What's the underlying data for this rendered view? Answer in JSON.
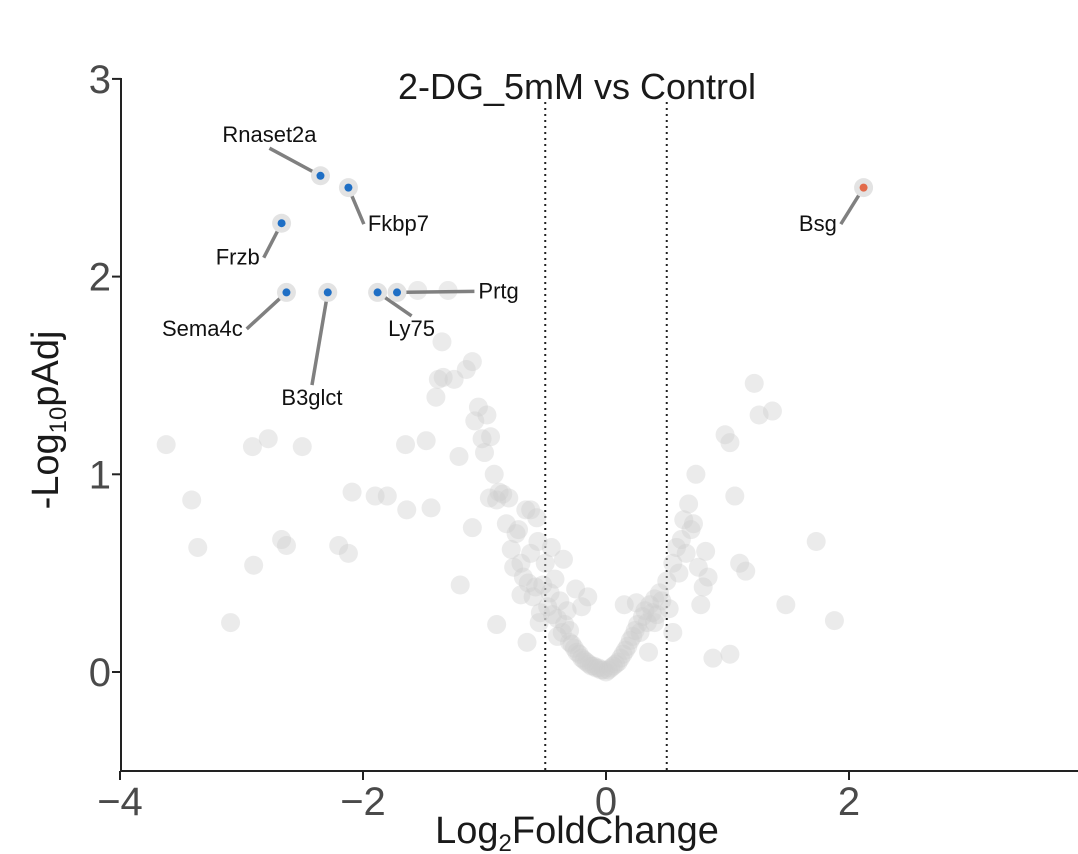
{
  "chart_data": {
    "type": "scatter",
    "title": "2-DG_5mM vs Control",
    "xlabel": {
      "prefix": "Log",
      "sub": "2",
      "suffix": "FoldChange"
    },
    "ylabel": {
      "prefix": "-Log",
      "sub": "10",
      "suffix": "pAdj"
    },
    "xlim": [
      -4,
      3.9
    ],
    "ylim": [
      -0.5,
      3
    ],
    "x_ticks": [
      -4,
      -2,
      0,
      2
    ],
    "x_tick_labels": [
      "−4",
      "−2",
      "0",
      "2"
    ],
    "y_ticks": [
      0,
      1,
      2,
      3
    ],
    "y_tick_labels": [
      "0",
      "1",
      "2",
      "3"
    ],
    "thresholds_x": [
      -0.5,
      0.5
    ],
    "grid": false,
    "legend": "none",
    "colors": {
      "background": "#cccccc",
      "down": "#1f6fc5",
      "up": "#e26a4a",
      "halo": "#e3e3e3",
      "leader": "#808080",
      "threshold": "#222222"
    },
    "labeled": [
      {
        "gene": "Rnaset2a",
        "x": -2.35,
        "y": 2.51,
        "dir": "down",
        "lx": -2.77,
        "ly": 2.68,
        "anchor": "middle"
      },
      {
        "gene": "Fkbp7",
        "x": -2.12,
        "y": 2.45,
        "dir": "down",
        "lx": -1.96,
        "ly": 2.23,
        "anchor": "start"
      },
      {
        "gene": "Frzb",
        "x": -2.67,
        "y": 2.27,
        "dir": "down",
        "lx": -2.85,
        "ly": 2.06,
        "anchor": "end"
      },
      {
        "gene": "Sema4c",
        "x": -2.63,
        "y": 1.92,
        "dir": "down",
        "lx": -2.99,
        "ly": 1.7,
        "anchor": "end"
      },
      {
        "gene": "B3glct",
        "x": -2.29,
        "y": 1.92,
        "dir": "down",
        "lx": -2.42,
        "ly": 1.35,
        "anchor": "middle"
      },
      {
        "gene": "Ly75",
        "x": -1.88,
        "y": 1.92,
        "dir": "down",
        "lx": -1.6,
        "ly": 1.7,
        "anchor": "middle"
      },
      {
        "gene": "Prtg",
        "x": -1.72,
        "y": 1.92,
        "dir": "down",
        "lx": -1.05,
        "ly": 1.89,
        "anchor": "start"
      },
      {
        "gene": "Bsg",
        "x": 2.12,
        "y": 2.45,
        "dir": "up",
        "lx": 1.9,
        "ly": 2.23,
        "anchor": "end"
      }
    ],
    "background_points": [
      [
        -3.62,
        1.15
      ],
      [
        -3.41,
        0.87
      ],
      [
        -3.36,
        0.63
      ],
      [
        -3.09,
        0.25
      ],
      [
        -2.91,
        1.14
      ],
      [
        -2.78,
        1.18
      ],
      [
        -2.9,
        0.54
      ],
      [
        -2.67,
        0.67
      ],
      [
        -2.63,
        0.64
      ],
      [
        -2.5,
        1.14
      ],
      [
        -2.2,
        0.64
      ],
      [
        -2.12,
        0.6
      ],
      [
        -2.09,
        0.91
      ],
      [
        -1.8,
        0.89
      ],
      [
        -1.64,
        0.82
      ],
      [
        -1.55,
        1.93
      ],
      [
        -1.48,
        1.17
      ],
      [
        -1.44,
        0.83
      ],
      [
        -1.4,
        1.39
      ],
      [
        -1.38,
        1.48
      ],
      [
        -1.35,
        1.67
      ],
      [
        -1.34,
        1.49
      ],
      [
        -1.3,
        1.93
      ],
      [
        -1.25,
        1.48
      ],
      [
        -1.21,
        1.09
      ],
      [
        -1.15,
        1.53
      ],
      [
        -1.1,
        1.57
      ],
      [
        -1.08,
        1.27
      ],
      [
        -1.05,
        1.34
      ],
      [
        -1.02,
        1.18
      ],
      [
        -1.0,
        1.11
      ],
      [
        -0.98,
        1.3
      ],
      [
        -0.96,
        0.88
      ],
      [
        -0.95,
        1.19
      ],
      [
        -0.92,
        1.0
      ],
      [
        -0.9,
        0.87
      ],
      [
        -0.88,
        0.91
      ],
      [
        -0.85,
        0.9
      ],
      [
        -0.82,
        0.75
      ],
      [
        -0.8,
        0.88
      ],
      [
        -0.78,
        0.62
      ],
      [
        -0.76,
        0.53
      ],
      [
        -0.74,
        0.7
      ],
      [
        -0.72,
        0.72
      ],
      [
        -0.7,
        0.55
      ],
      [
        -0.68,
        0.48
      ],
      [
        -0.66,
        0.82
      ],
      [
        -0.64,
        0.45
      ],
      [
        -0.62,
        0.6
      ],
      [
        -0.6,
        0.38
      ],
      [
        -0.58,
        0.43
      ],
      [
        -0.56,
        0.66
      ],
      [
        -0.54,
        0.3
      ],
      [
        -0.52,
        0.44
      ],
      [
        -0.5,
        0.55
      ],
      [
        -0.48,
        0.33
      ],
      [
        -0.46,
        0.4
      ],
      [
        -0.44,
        0.29
      ],
      [
        -0.42,
        0.47
      ],
      [
        -0.4,
        0.27
      ],
      [
        -0.38,
        0.36
      ],
      [
        -0.36,
        0.2
      ],
      [
        -0.34,
        0.24
      ],
      [
        -0.32,
        0.31
      ],
      [
        -0.3,
        0.15
      ],
      [
        -0.28,
        0.14
      ],
      [
        -0.26,
        0.12
      ],
      [
        -0.24,
        0.1
      ],
      [
        -0.22,
        0.09
      ],
      [
        -0.2,
        0.07
      ],
      [
        -0.18,
        0.06
      ],
      [
        -0.16,
        0.05
      ],
      [
        -0.14,
        0.04
      ],
      [
        -0.12,
        0.03
      ],
      [
        -0.1,
        0.03
      ],
      [
        -0.08,
        0.02
      ],
      [
        -0.06,
        0.02
      ],
      [
        -0.04,
        0.01
      ],
      [
        -0.02,
        0.01
      ],
      [
        0.0,
        0.0
      ],
      [
        0.02,
        0.01
      ],
      [
        0.04,
        0.02
      ],
      [
        0.06,
        0.03
      ],
      [
        0.08,
        0.04
      ],
      [
        0.1,
        0.05
      ],
      [
        0.12,
        0.07
      ],
      [
        0.14,
        0.09
      ],
      [
        0.16,
        0.11
      ],
      [
        0.18,
        0.13
      ],
      [
        0.2,
        0.16
      ],
      [
        0.22,
        0.18
      ],
      [
        0.24,
        0.21
      ],
      [
        0.26,
        0.24
      ],
      [
        0.28,
        0.2
      ],
      [
        0.3,
        0.28
      ],
      [
        0.32,
        0.31
      ],
      [
        0.34,
        0.25
      ],
      [
        0.36,
        0.34
      ],
      [
        0.38,
        0.3
      ],
      [
        0.4,
        0.37
      ],
      [
        0.42,
        0.29
      ],
      [
        0.44,
        0.4
      ],
      [
        0.46,
        0.36
      ],
      [
        0.5,
        0.46
      ],
      [
        0.52,
        0.32
      ],
      [
        0.55,
        0.55
      ],
      [
        0.58,
        0.63
      ],
      [
        0.6,
        0.5
      ],
      [
        0.62,
        0.67
      ],
      [
        0.64,
        0.77
      ],
      [
        0.66,
        0.6
      ],
      [
        0.68,
        0.85
      ],
      [
        0.7,
        0.72
      ],
      [
        0.72,
        0.75
      ],
      [
        0.74,
        1.0
      ],
      [
        0.76,
        0.53
      ],
      [
        0.78,
        0.34
      ],
      [
        0.8,
        0.43
      ],
      [
        0.82,
        0.61
      ],
      [
        0.84,
        0.48
      ],
      [
        -0.9,
        0.24
      ],
      [
        -1.1,
        0.73
      ],
      [
        -1.2,
        0.44
      ],
      [
        -0.7,
        0.39
      ],
      [
        -0.62,
        0.82
      ],
      [
        -0.57,
        0.78
      ],
      [
        -0.45,
        0.63
      ],
      [
        -0.35,
        0.57
      ],
      [
        -0.25,
        0.42
      ],
      [
        -0.15,
        0.38
      ],
      [
        -0.55,
        0.25
      ],
      [
        -0.3,
        0.21
      ],
      [
        -0.2,
        0.33
      ],
      [
        0.15,
        0.34
      ],
      [
        0.25,
        0.35
      ],
      [
        0.35,
        0.1
      ],
      [
        0.4,
        0.25
      ],
      [
        0.55,
        0.2
      ],
      [
        -0.65,
        0.15
      ],
      [
        -0.4,
        0.18
      ],
      [
        0.88,
        0.07
      ],
      [
        0.98,
        1.2
      ],
      [
        1.02,
        1.16
      ],
      [
        1.06,
        0.89
      ],
      [
        1.1,
        0.55
      ],
      [
        1.15,
        0.51
      ],
      [
        1.22,
        1.46
      ],
      [
        1.26,
        1.3
      ],
      [
        1.37,
        1.32
      ],
      [
        1.48,
        0.34
      ],
      [
        1.73,
        0.66
      ],
      [
        1.88,
        0.26
      ],
      [
        1.02,
        0.09
      ],
      [
        -1.9,
        0.89
      ],
      [
        -1.65,
        1.15
      ]
    ]
  }
}
